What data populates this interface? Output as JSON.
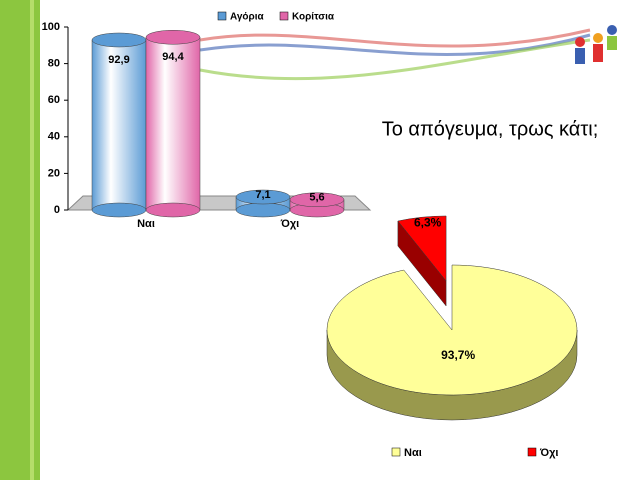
{
  "title": "Το απόγευμα, τρως κάτι;",
  "chart_data": [
    {
      "type": "bar",
      "categories": [
        "Ναι",
        "Όχι"
      ],
      "series": [
        {
          "name": "Αγόρια",
          "color": "#5b9bd5",
          "values": [
            92.9,
            7.1
          ],
          "value_labels": [
            "92,9",
            "7,1"
          ]
        },
        {
          "name": "Κορίτσια",
          "color": "#e066a8",
          "values": [
            94.4,
            5.6
          ],
          "value_labels": [
            "94,4",
            "5,6"
          ]
        }
      ],
      "ylim": [
        0,
        100
      ],
      "yticks": [
        0,
        20,
        40,
        60,
        80,
        100
      ],
      "legend": "top"
    },
    {
      "type": "pie",
      "categories": [
        "Ναι",
        "Όχι"
      ],
      "values": [
        93.7,
        6.3
      ],
      "value_labels": [
        "93,7%",
        "6,3%"
      ],
      "colors": [
        "#ffff99",
        "#ff0000"
      ],
      "legend": "bottom"
    }
  ]
}
